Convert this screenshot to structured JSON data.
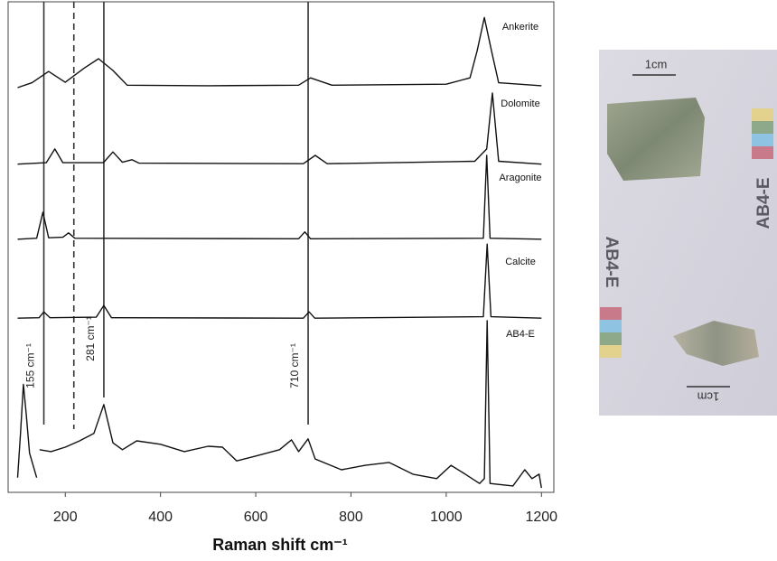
{
  "chart_data": {
    "type": "line",
    "x_label": "Raman shift cm⁻¹",
    "xlim": [
      80,
      1226
    ],
    "xticks": [
      200,
      400,
      600,
      800,
      1000,
      1200
    ],
    "ylim": [
      0,
      100
    ],
    "color": "#111111",
    "series": [
      {
        "name": "Ankerite",
        "x": [
          100,
          130,
          165,
          200,
          240,
          270,
          300,
          330,
          500,
          690,
          715,
          760,
          1000,
          1050,
          1065,
          1080,
          1095,
          1110,
          1200
        ],
        "values": [
          82.5,
          83.5,
          85.8,
          83.6,
          86.5,
          88.4,
          86,
          83,
          82.9,
          83,
          84.5,
          83,
          83.2,
          84.5,
          90,
          96.8,
          90,
          83.5,
          82.9
        ]
      },
      {
        "name": "Dolomite",
        "x": [
          100,
          160,
          178,
          195,
          280,
          300,
          320,
          340,
          355,
          700,
          725,
          750,
          1060,
          1085,
          1097,
          1110,
          1200
        ],
        "values": [
          66.9,
          67.2,
          70,
          67.2,
          67.2,
          69.4,
          67.3,
          67.8,
          67.1,
          67,
          68.7,
          67,
          67.5,
          70,
          81.4,
          67.5,
          66.9
        ]
      },
      {
        "name": "Aragonite",
        "x": [
          100,
          140,
          153,
          165,
          195,
          207,
          220,
          690,
          703,
          715,
          1078,
          1085,
          1092,
          1200
        ],
        "values": [
          51.6,
          51.8,
          57.1,
          51.9,
          52,
          52.9,
          51.8,
          51.7,
          53.1,
          51.7,
          51.8,
          68.7,
          51.8,
          51.6
        ]
      },
      {
        "name": "Calcite",
        "x": [
          100,
          145,
          155,
          168,
          265,
          281,
          297,
          700,
          712,
          724,
          1078,
          1086,
          1094,
          1200
        ],
        "values": [
          35.5,
          35.6,
          36.8,
          35.6,
          35.7,
          38.1,
          35.6,
          35.5,
          36.8,
          35.5,
          35.8,
          50.6,
          35.8,
          35.5
        ]
      },
      {
        "name": "AB4-E",
        "x": [
          100,
          106,
          112,
          118,
          125,
          140,
          143,
          146,
          170,
          200,
          230,
          260,
          281,
          300,
          320,
          350,
          400,
          450,
          500,
          530,
          560,
          600,
          650,
          675,
          690,
          710,
          725,
          780,
          830,
          880,
          930,
          980,
          1010,
          1040,
          1070,
          1080,
          1086,
          1092,
          1140,
          1165,
          1180,
          1195,
          1200
        ],
        "values": [
          3,
          12,
          22,
          16,
          8,
          3,
          null,
          8.7,
          8.3,
          9.2,
          10.5,
          12,
          17.9,
          10.1,
          8.7,
          10.5,
          9.8,
          8.3,
          9.4,
          9.2,
          6.4,
          7.4,
          8.7,
          10.7,
          8.3,
          10.9,
          6.8,
          4.6,
          5.5,
          6.1,
          3.7,
          2.8,
          5.5,
          3.7,
          1.8,
          2.8,
          35,
          1.8,
          1.3,
          4.6,
          2.8,
          3.7,
          0.9
        ]
      }
    ],
    "reference_lines": [
      {
        "x": 155,
        "label": "155 cm⁻¹"
      },
      {
        "x": 218,
        "dashed": true
      },
      {
        "x": 281,
        "label": "281 cm⁻¹"
      },
      {
        "x": 710,
        "label": "710 cm⁻¹"
      }
    ]
  },
  "photo": {
    "scale_top": "1cm",
    "scale_bottom": "1cm",
    "label_top": "AB4-E",
    "label_bottom": "AB4-E"
  }
}
